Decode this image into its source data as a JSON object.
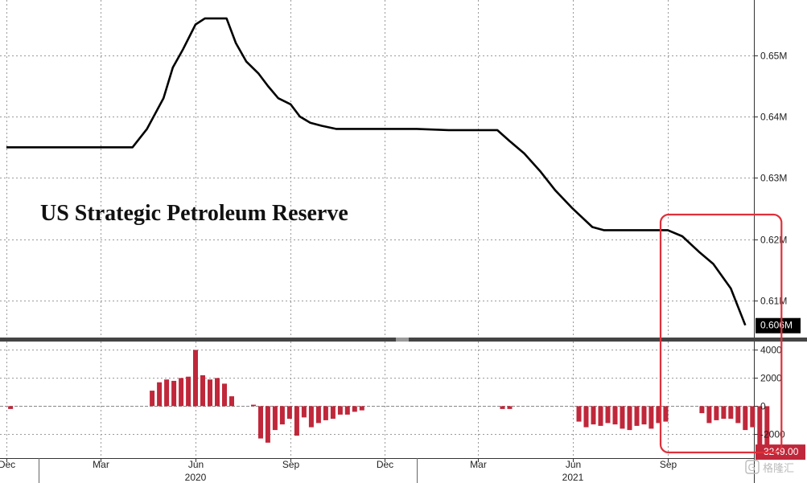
{
  "chart_data": [
    {
      "type": "line",
      "title": "US Strategic Petroleum Reserve",
      "unit": "M",
      "ylim": [
        0.604,
        0.659
      ],
      "yticks": [
        "0.61M",
        "0.62M",
        "0.63M",
        "0.64M",
        "0.65M"
      ],
      "ytick_values": [
        0.61,
        0.62,
        0.63,
        0.64,
        0.65
      ],
      "last_value_label": "0.606M",
      "grid": true,
      "series": [
        {
          "color": "#000000",
          "x": [
            "2019-12-01",
            "2020-01-01",
            "2020-02-01",
            "2020-03-01",
            "2020-04-01",
            "2020-04-15",
            "2020-05-01",
            "2020-05-10",
            "2020-05-20",
            "2020-06-01",
            "2020-06-10",
            "2020-06-20",
            "2020-07-01",
            "2020-07-10",
            "2020-07-20",
            "2020-08-01",
            "2020-08-10",
            "2020-08-20",
            "2020-09-01",
            "2020-09-10",
            "2020-09-20",
            "2020-10-01",
            "2020-10-15",
            "2020-11-01",
            "2020-12-01",
            "2021-01-01",
            "2021-02-01",
            "2021-03-01",
            "2021-03-20",
            "2021-04-01",
            "2021-04-15",
            "2021-05-01",
            "2021-05-15",
            "2021-06-01",
            "2021-06-20",
            "2021-07-01",
            "2021-07-10",
            "2021-08-01",
            "2021-09-01",
            "2021-09-15",
            "2021-10-01",
            "2021-10-15",
            "2021-11-01",
            "2021-11-15"
          ],
          "values": [
            0.635,
            0.635,
            0.635,
            0.635,
            0.635,
            0.638,
            0.643,
            0.648,
            0.651,
            0.655,
            0.656,
            0.656,
            0.656,
            0.652,
            0.649,
            0.647,
            0.645,
            0.643,
            0.642,
            0.64,
            0.639,
            0.6385,
            0.638,
            0.638,
            0.638,
            0.638,
            0.6378,
            0.6378,
            0.6378,
            0.636,
            0.634,
            0.631,
            0.628,
            0.625,
            0.622,
            0.6215,
            0.6215,
            0.6215,
            0.6215,
            0.6205,
            0.618,
            0.616,
            0.612,
            0.606
          ]
        }
      ]
    },
    {
      "type": "bar",
      "ylim": [
        -3700,
        4600
      ],
      "yticks": [
        "-2000",
        "0",
        "2000",
        "4000"
      ],
      "ytick_values": [
        -2000,
        0,
        2000,
        4000
      ],
      "last_value_label": "-3249.00",
      "grid": true,
      "series": [
        {
          "color": "#c0273a",
          "x": [
            "2019-12-05",
            "2020-04-20",
            "2020-04-27",
            "2020-05-04",
            "2020-05-11",
            "2020-05-18",
            "2020-05-25",
            "2020-06-01",
            "2020-06-08",
            "2020-06-15",
            "2020-06-22",
            "2020-06-29",
            "2020-07-06",
            "2020-07-27",
            "2020-08-03",
            "2020-08-10",
            "2020-08-17",
            "2020-08-24",
            "2020-08-31",
            "2020-09-07",
            "2020-09-14",
            "2020-09-21",
            "2020-09-28",
            "2020-10-05",
            "2020-10-12",
            "2020-10-19",
            "2020-10-26",
            "2020-11-02",
            "2020-11-09",
            "2021-03-25",
            "2021-04-01",
            "2021-06-07",
            "2021-06-14",
            "2021-06-21",
            "2021-06-28",
            "2021-07-05",
            "2021-07-12",
            "2021-07-19",
            "2021-07-26",
            "2021-08-02",
            "2021-08-09",
            "2021-08-16",
            "2021-08-23",
            "2021-08-30",
            "2021-10-04",
            "2021-10-11",
            "2021-10-18",
            "2021-10-25",
            "2021-11-01",
            "2021-11-08",
            "2021-11-15",
            "2021-11-22",
            "2021-11-29",
            "2021-12-06"
          ],
          "values": [
            -200,
            1100,
            1700,
            1900,
            1800,
            2000,
            2100,
            4000,
            2200,
            1900,
            2000,
            1600,
            700,
            100,
            -2300,
            -2600,
            -1700,
            -1300,
            -900,
            -2100,
            -800,
            -1500,
            -1200,
            -1000,
            -900,
            -600,
            -600,
            -400,
            -300,
            -200,
            -200,
            -1100,
            -1500,
            -1300,
            -1400,
            -1200,
            -1300,
            -1600,
            -1700,
            -1400,
            -1300,
            -1600,
            -1200,
            -1100,
            -500,
            -1200,
            -1000,
            -900,
            -900,
            -1200,
            -1700,
            -1500,
            -3100,
            -3249
          ]
        }
      ]
    }
  ],
  "x_axis": {
    "months": [
      {
        "date": "2019-12-01",
        "label": "Dec"
      },
      {
        "date": "2020-03-01",
        "label": "Mar"
      },
      {
        "date": "2020-06-01",
        "label": "Jun"
      },
      {
        "date": "2020-09-01",
        "label": "Sep"
      },
      {
        "date": "2020-12-01",
        "label": "Dec"
      },
      {
        "date": "2021-03-01",
        "label": "Mar"
      },
      {
        "date": "2021-06-01",
        "label": "Jun"
      },
      {
        "date": "2021-09-01",
        "label": "Sep"
      }
    ],
    "years": [
      {
        "date": "2020-06-01",
        "label": "2020"
      },
      {
        "date": "2021-06-01",
        "label": "2021"
      }
    ]
  },
  "annotation": {
    "type": "highlight-box",
    "color": "#e0303a",
    "from": "2021-08-25",
    "to": "2021-12-20"
  },
  "watermark": "格隆汇"
}
